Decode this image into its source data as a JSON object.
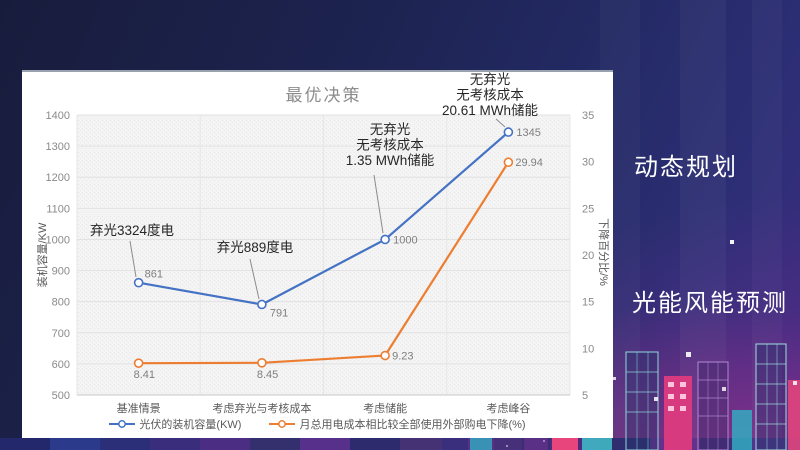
{
  "slide": {
    "side_labels": [
      {
        "text": "动态规划"
      },
      {
        "text": "光能风能预测"
      }
    ],
    "theme": {
      "bg_navy": "#1d2350",
      "bg_purple": "#3d2c80",
      "glow_magenta": "#be348c",
      "panel_bg": "#ffffff",
      "series_blue": "#4472C4",
      "series_orange": "#ED7D31"
    }
  },
  "chart_data": {
    "type": "line",
    "title": "最优决策",
    "categories": [
      "基准情景",
      "考虑弃光与考核成本",
      "考虑储能",
      "考虑峰谷"
    ],
    "series": [
      {
        "name": "光伏的装机容量(KW)",
        "axis": "left",
        "color": "#4472C4",
        "values": [
          861,
          791,
          1000,
          1345
        ],
        "data_labels": [
          "861",
          "791",
          "1000",
          "1345"
        ]
      },
      {
        "name": "月总用电成本相比较全部使用外部购电下降(%)",
        "axis": "right",
        "color": "#ED7D31",
        "values": [
          8.41,
          8.45,
          9.23,
          29.94
        ],
        "data_labels": [
          "8.41",
          "8.45",
          "9.23",
          "29.94"
        ]
      }
    ],
    "left_axis": {
      "title": "装机容量/KW",
      "min": 500,
      "max": 1400,
      "step": 100
    },
    "right_axis": {
      "title": "下降百分比/%",
      "min": 5,
      "max": 35,
      "step": 5
    },
    "annotations": [
      {
        "lines": [
          "弃光3324度电"
        ],
        "series": 0,
        "point": 0
      },
      {
        "lines": [
          "弃光889度电"
        ],
        "series": 0,
        "point": 1
      },
      {
        "lines": [
          "无弃光",
          "无考核成本",
          "1.35 MWh储能"
        ],
        "series": 0,
        "point": 2
      },
      {
        "lines": [
          "无弃光",
          "无考核成本",
          "20.61 MWh储能"
        ],
        "series": 0,
        "point": 3
      }
    ],
    "legend_position": "bottom",
    "grid": true
  }
}
